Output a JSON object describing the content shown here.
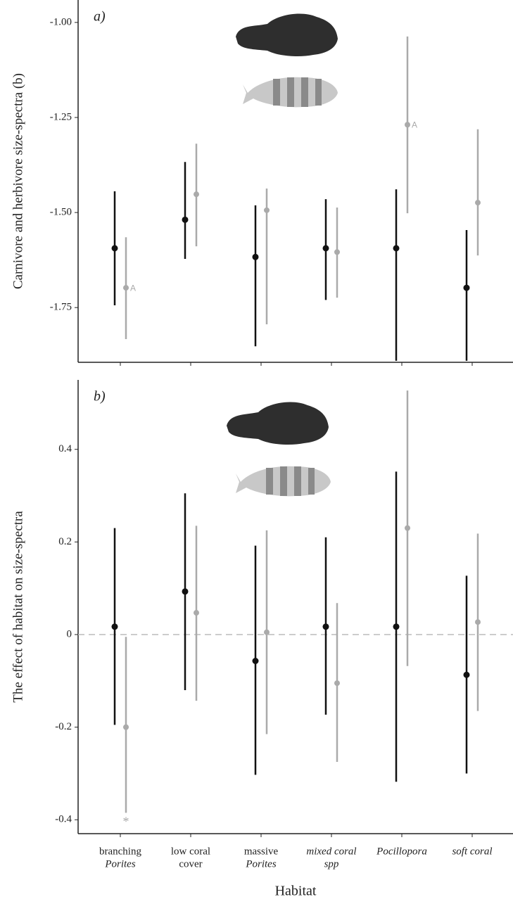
{
  "chart_data": [
    {
      "type": "pointrange",
      "panel_label": "a)",
      "ylabel": "Carnivore and herbivore size-spectra (b)",
      "categories": [
        null,
        null,
        null,
        null,
        null,
        null
      ],
      "ylim": [
        -1.894,
        -0.941
      ],
      "yticks": [
        {
          "value": -1,
          "label": "-1.00"
        },
        -1.25,
        {
          "value": -1.5,
          "label": "-1.50"
        },
        -1.75
      ],
      "series": [
        {
          "color": "#111111",
          "values": [
            -1.594,
            -1.519,
            -1.617,
            -1.594,
            -1.594,
            -1.698
          ],
          "lower": [
            -1.744,
            -1.622,
            -1.852,
            -1.73,
            -1.89,
            -1.89
          ],
          "upper": [
            -1.444,
            -1.367,
            -1.481,
            -1.465,
            -1.439,
            -1.546
          ]
        },
        {
          "color": "#aaaaaa",
          "values": [
            -1.698,
            -1.452,
            -1.494,
            -1.604,
            -1.269,
            -1.474
          ],
          "lower": [
            -1.833,
            -1.589,
            -1.794,
            -1.724,
            -1.502,
            -1.613
          ],
          "upper": [
            -1.565,
            -1.319,
            -1.437,
            -1.487,
            -1.037,
            -1.281
          ],
          "point_labels": [
            "A",
            null,
            null,
            null,
            "A",
            null
          ]
        }
      ]
    },
    {
      "type": "pointrange",
      "panel_label": "b)",
      "ylabel": "The effect of habitat on size-spectra",
      "xlabel": "Habitat",
      "categories": [
        [
          "branching",
          "Porites"
        ],
        [
          "low coral",
          "cover"
        ],
        [
          "massive",
          "Porites"
        ],
        [
          "mixed coral",
          "spp"
        ],
        [
          "Pocillopora"
        ],
        [
          "soft coral"
        ]
      ],
      "ylim": [
        -0.43,
        0.55
      ],
      "yticks": [
        0.4,
        0.2,
        0,
        -0.2,
        -0.4
      ],
      "hline": 0,
      "series": [
        {
          "color": "#111111",
          "values": [
            0.017,
            0.093,
            -0.057,
            0.017,
            0.017,
            -0.087
          ],
          "lower": [
            -0.195,
            -0.12,
            -0.303,
            -0.173,
            -0.318,
            -0.3
          ],
          "upper": [
            0.23,
            0.305,
            0.192,
            0.21,
            0.352,
            0.127
          ]
        },
        {
          "color": "#aaaaaa",
          "values": [
            -0.2,
            0.047,
            0.005,
            -0.105,
            0.23,
            0.027
          ],
          "lower": [
            -0.385,
            -0.143,
            -0.215,
            -0.275,
            -0.068,
            -0.165
          ],
          "upper": [
            -0.005,
            0.235,
            0.225,
            0.068,
            0.527,
            0.218
          ],
          "lower_labels": [
            "*",
            null,
            null,
            null,
            null,
            null
          ]
        }
      ]
    }
  ]
}
